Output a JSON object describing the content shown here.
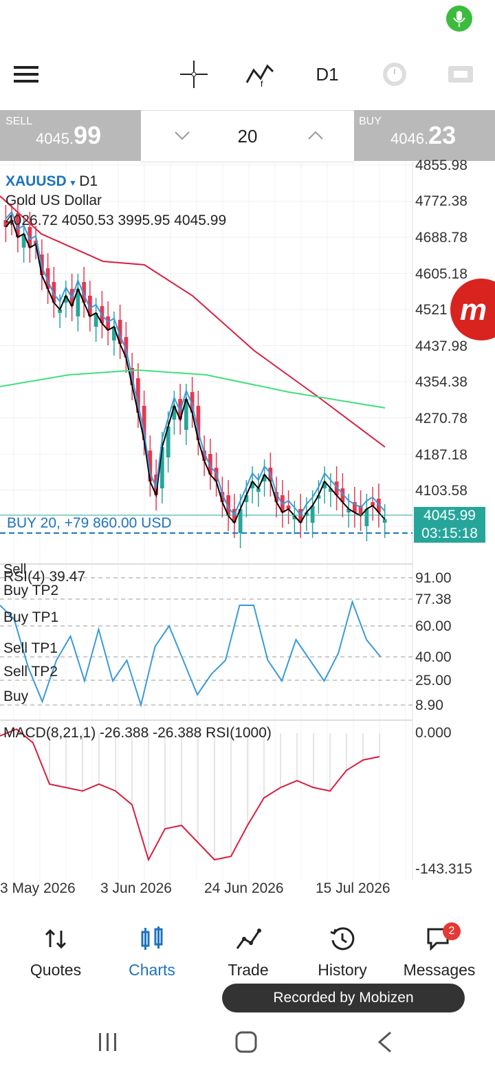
{
  "toolbar": {
    "timeframe": "D1",
    "icons": [
      "menu-icon",
      "crosshair-icon",
      "indicators-icon",
      "timeframe-button",
      "clock-icon",
      "one-click-trading-icon"
    ]
  },
  "trade_panel": {
    "sell_label": "SELL",
    "sell_big": "4045.",
    "sell_small": "99",
    "buy_label": "BUY",
    "buy_big": "4046.",
    "buy_small": "23",
    "volume": "20"
  },
  "chart": {
    "symbol": "XAUUSD",
    "timeframe": "D1",
    "description": "Gold US Dollar",
    "ohlc": "4026.72 4050.53 3995.95 4045.99",
    "price_axis": [
      "4855.98",
      "4772.38",
      "4688.78",
      "4605.18",
      "4521",
      "4437.98",
      "4354.38",
      "4270.78",
      "4187.18",
      "4103.58"
    ],
    "position_label": "BUY 20,  +79 860.00 USD",
    "current_price": "4045.99",
    "countdown": "03:15:18",
    "colors": {
      "bull": "#26a69a",
      "bear": "#e53950",
      "ma_fast": "#000000",
      "ma_mid": "#3a9ad9",
      "ma_slow": "#d81e3f",
      "ma_long": "#3ee07a",
      "accent": "#1e73be"
    }
  },
  "rsi_panel": {
    "title": "RSI(4) 39.47",
    "overlay": "Sell",
    "levels": [
      {
        "label": "Buy TP2",
        "value": "77.38"
      },
      {
        "label": "Buy TP1",
        "value": "60.00"
      },
      {
        "label": "Sell TP1",
        "value": "40.00"
      },
      {
        "label": "Sell TP2",
        "value": "25.00"
      },
      {
        "label": "Buy",
        "value": "8.90"
      }
    ],
    "top": "91.00"
  },
  "macd_panel": {
    "title": "MACD(8,21,1) -26.388 -26.388 RSI(1000)",
    "top": "0.000",
    "bottom": "-143.315"
  },
  "x_axis": [
    "3 May 2026",
    "3 Jun 2026",
    "24 Jun 2026",
    "15 Jul 2026"
  ],
  "nav": [
    {
      "label": "Quotes",
      "icon": "quotes-icon"
    },
    {
      "label": "Charts",
      "icon": "charts-icon"
    },
    {
      "label": "Trade",
      "icon": "trade-icon"
    },
    {
      "label": "History",
      "icon": "history-icon"
    },
    {
      "label": "Messages",
      "icon": "messages-icon"
    }
  ],
  "messages_badge": "2",
  "recorded_by": "Recorded by Mobizen"
}
